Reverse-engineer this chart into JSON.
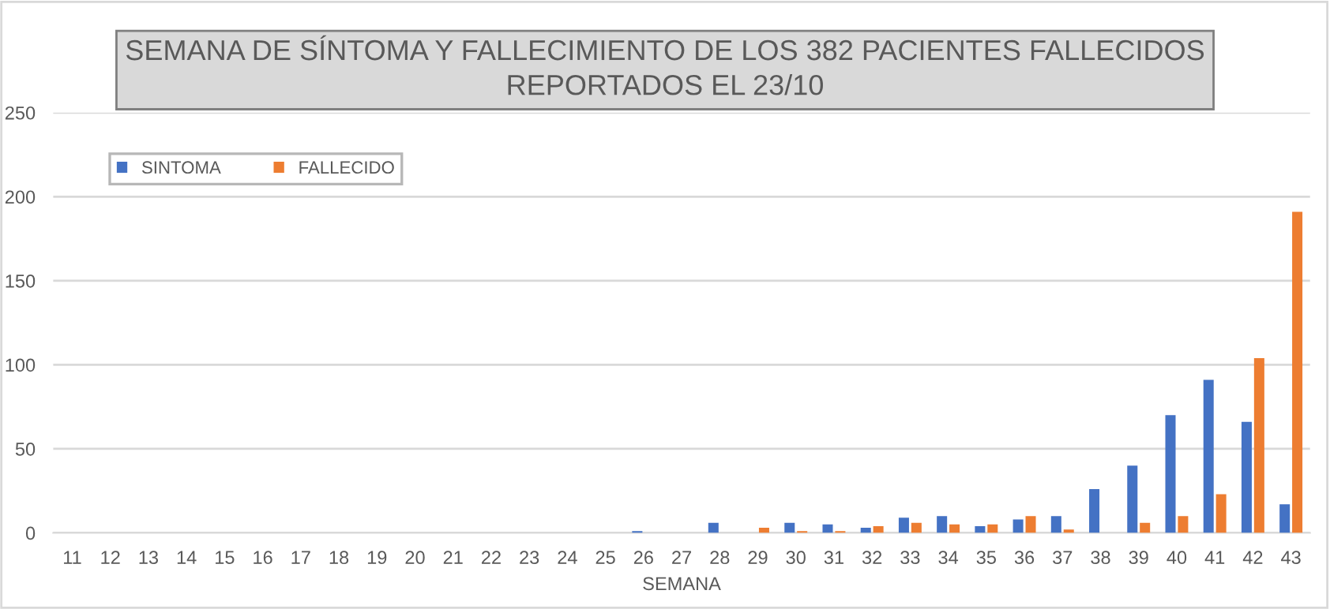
{
  "chart_data": {
    "type": "bar",
    "title": "SEMANA DE SÍNTOMA Y FALLECIMIENTO DE LOS 382 PACIENTES FALLECIDOS\nREPORTADOS EL 23/10",
    "xlabel": "SEMANA",
    "categories": [
      "11",
      "12",
      "13",
      "14",
      "15",
      "16",
      "17",
      "18",
      "19",
      "20",
      "21",
      "22",
      "23",
      "24",
      "25",
      "26",
      "27",
      "28",
      "29",
      "30",
      "31",
      "32",
      "33",
      "34",
      "35",
      "36",
      "37",
      "38",
      "39",
      "40",
      "41",
      "42",
      "43"
    ],
    "series": [
      {
        "name": "SINTOMA",
        "color": "#4472c4",
        "values": [
          0,
          0,
          0,
          0,
          0,
          0,
          0,
          0,
          0,
          0,
          0,
          0,
          0,
          0,
          0,
          1,
          0,
          6,
          0,
          6,
          5,
          3,
          9,
          10,
          4,
          8,
          10,
          26,
          40,
          70,
          91,
          66,
          17
        ]
      },
      {
        "name": "FALLECIDO",
        "color": "#ed7d31",
        "values": [
          0,
          0,
          0,
          0,
          0,
          0,
          0,
          0,
          0,
          0,
          0,
          0,
          0,
          0,
          0,
          0,
          0,
          0,
          3,
          1,
          1,
          4,
          6,
          5,
          5,
          10,
          2,
          0,
          6,
          10,
          23,
          104,
          191
        ]
      }
    ],
    "ylim": [
      0,
      250
    ],
    "yticks": [
      0,
      50,
      100,
      150,
      200,
      250
    ],
    "grid": "y",
    "legend": "top left"
  }
}
